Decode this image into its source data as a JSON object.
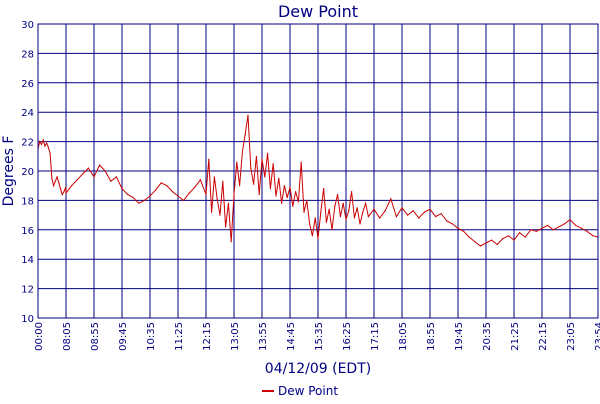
{
  "chart_data": {
    "type": "line",
    "title": "Dew Point",
    "xlabel": "04/12/09 (EDT)",
    "ylabel": "Degrees F",
    "ylim": [
      10,
      30
    ],
    "y_ticks": [
      "10",
      "12",
      "14",
      "16",
      "18",
      "20",
      "22",
      "24",
      "26",
      "28",
      "30"
    ],
    "x_ticks": [
      "00:00",
      "08:05",
      "08:55",
      "09:45",
      "10:35",
      "11:25",
      "12:15",
      "13:05",
      "13:55",
      "14:45",
      "15:35",
      "16:25",
      "17:15",
      "18:05",
      "18:55",
      "19:45",
      "20:35",
      "21:25",
      "22:15",
      "23:05",
      "23:54"
    ],
    "grid": true,
    "legend_position": "bottom",
    "series": [
      {
        "name": "Dew Point",
        "color": "#cc0000",
        "points": [
          [
            "00:00",
            21.5
          ],
          [
            "00:30",
            22.0
          ],
          [
            "01:00",
            21.8
          ],
          [
            "01:30",
            22.1
          ],
          [
            "02:00",
            21.7
          ],
          [
            "02:30",
            21.9
          ],
          [
            "03:00",
            21.6
          ],
          [
            "03:30",
            21.2
          ],
          [
            "04:00",
            19.5
          ],
          [
            "04:30",
            19.0
          ],
          [
            "05:00",
            19.3
          ],
          [
            "05:30",
            19.6
          ],
          [
            "06:00",
            19.2
          ],
          [
            "06:30",
            18.8
          ],
          [
            "07:00",
            18.4
          ],
          [
            "07:30",
            18.6
          ],
          [
            "08:00",
            18.9
          ],
          [
            "08:05",
            18.5
          ],
          [
            "08:15",
            19.0
          ],
          [
            "08:25",
            19.4
          ],
          [
            "08:35",
            19.8
          ],
          [
            "08:45",
            20.2
          ],
          [
            "08:55",
            19.6
          ],
          [
            "09:05",
            20.4
          ],
          [
            "09:15",
            20.0
          ],
          [
            "09:25",
            19.3
          ],
          [
            "09:35",
            19.6
          ],
          [
            "09:45",
            18.8
          ],
          [
            "09:55",
            18.4
          ],
          [
            "10:05",
            18.2
          ],
          [
            "10:15",
            17.8
          ],
          [
            "10:25",
            18.0
          ],
          [
            "10:35",
            18.3
          ],
          [
            "10:45",
            18.7
          ],
          [
            "10:55",
            19.2
          ],
          [
            "11:05",
            19.0
          ],
          [
            "11:15",
            18.6
          ],
          [
            "11:25",
            18.3
          ],
          [
            "11:35",
            18.0
          ],
          [
            "11:45",
            18.5
          ],
          [
            "11:55",
            18.9
          ],
          [
            "12:05",
            19.4
          ],
          [
            "12:15",
            18.4
          ],
          [
            "12:20",
            20.8
          ],
          [
            "12:25",
            17.2
          ],
          [
            "12:30",
            19.6
          ],
          [
            "12:35",
            18.1
          ],
          [
            "12:40",
            17.0
          ],
          [
            "12:45",
            19.3
          ],
          [
            "12:50",
            16.2
          ],
          [
            "12:55",
            17.8
          ],
          [
            "13:00",
            15.2
          ],
          [
            "13:05",
            18.4
          ],
          [
            "13:10",
            20.6
          ],
          [
            "13:15",
            19.0
          ],
          [
            "13:20",
            21.3
          ],
          [
            "13:25",
            22.5
          ],
          [
            "13:30",
            23.8
          ],
          [
            "13:35",
            20.2
          ],
          [
            "13:40",
            19.1
          ],
          [
            "13:45",
            21.0
          ],
          [
            "13:50",
            18.4
          ],
          [
            "13:55",
            20.8
          ],
          [
            "14:00",
            19.6
          ],
          [
            "14:05",
            21.2
          ],
          [
            "14:10",
            18.8
          ],
          [
            "14:15",
            20.5
          ],
          [
            "14:20",
            18.3
          ],
          [
            "14:25",
            19.5
          ],
          [
            "14:30",
            17.8
          ],
          [
            "14:35",
            19.0
          ],
          [
            "14:40",
            18.2
          ],
          [
            "14:45",
            18.9
          ],
          [
            "14:50",
            17.6
          ],
          [
            "14:55",
            18.6
          ],
          [
            "15:00",
            17.9
          ],
          [
            "15:05",
            20.6
          ],
          [
            "15:10",
            17.2
          ],
          [
            "15:15",
            18.0
          ],
          [
            "15:20",
            16.4
          ],
          [
            "15:25",
            15.6
          ],
          [
            "15:30",
            16.8
          ],
          [
            "15:35",
            15.4
          ],
          [
            "15:40",
            17.2
          ],
          [
            "15:45",
            18.8
          ],
          [
            "15:50",
            16.5
          ],
          [
            "15:55",
            17.4
          ],
          [
            "16:00",
            16.0
          ],
          [
            "16:05",
            17.6
          ],
          [
            "16:10",
            18.4
          ],
          [
            "16:15",
            16.9
          ],
          [
            "16:20",
            17.8
          ],
          [
            "16:25",
            16.7
          ],
          [
            "16:30",
            17.3
          ],
          [
            "16:35",
            18.6
          ],
          [
            "16:40",
            16.8
          ],
          [
            "16:45",
            17.5
          ],
          [
            "16:50",
            16.4
          ],
          [
            "16:55",
            17.2
          ],
          [
            "17:00",
            17.8
          ],
          [
            "17:05",
            16.9
          ],
          [
            "17:15",
            17.4
          ],
          [
            "17:25",
            16.8
          ],
          [
            "17:35",
            17.3
          ],
          [
            "17:45",
            18.1
          ],
          [
            "17:55",
            16.9
          ],
          [
            "18:05",
            17.5
          ],
          [
            "18:15",
            17.0
          ],
          [
            "18:25",
            17.3
          ],
          [
            "18:35",
            16.8
          ],
          [
            "18:45",
            17.2
          ],
          [
            "18:55",
            17.4
          ],
          [
            "19:05",
            16.9
          ],
          [
            "19:15",
            17.1
          ],
          [
            "19:25",
            16.6
          ],
          [
            "19:35",
            16.4
          ],
          [
            "19:45",
            16.1
          ],
          [
            "19:55",
            15.9
          ],
          [
            "20:05",
            15.5
          ],
          [
            "20:15",
            15.2
          ],
          [
            "20:25",
            14.9
          ],
          [
            "20:35",
            15.1
          ],
          [
            "20:45",
            15.3
          ],
          [
            "20:55",
            15.0
          ],
          [
            "21:05",
            15.4
          ],
          [
            "21:15",
            15.6
          ],
          [
            "21:25",
            15.3
          ],
          [
            "21:35",
            15.8
          ],
          [
            "21:45",
            15.5
          ],
          [
            "21:55",
            16.0
          ],
          [
            "22:05",
            15.9
          ],
          [
            "22:15",
            16.1
          ],
          [
            "22:25",
            16.3
          ],
          [
            "22:35",
            16.0
          ],
          [
            "22:45",
            16.2
          ],
          [
            "22:55",
            16.4
          ],
          [
            "23:05",
            16.7
          ],
          [
            "23:15",
            16.3
          ],
          [
            "23:25",
            16.1
          ],
          [
            "23:35",
            15.9
          ],
          [
            "23:45",
            15.6
          ],
          [
            "23:54",
            15.5
          ]
        ]
      }
    ]
  }
}
